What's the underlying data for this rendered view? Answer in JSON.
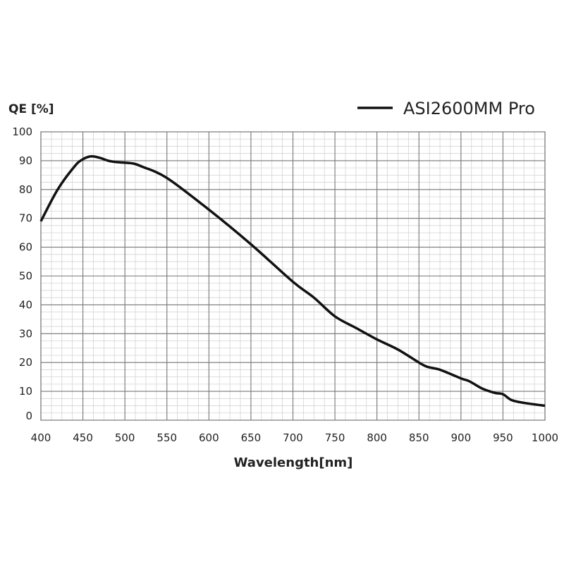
{
  "chart_data": {
    "type": "line",
    "title": "",
    "xlabel": "Wavelength[nm]",
    "ylabel": "QE [%]",
    "xlim": [
      400,
      1000
    ],
    "ylim": [
      0,
      100
    ],
    "xticks": [
      400,
      450,
      500,
      550,
      600,
      650,
      700,
      750,
      800,
      850,
      900,
      950,
      1000
    ],
    "yticks": [
      0,
      10,
      20,
      30,
      40,
      50,
      60,
      70,
      80,
      90,
      100
    ],
    "grid": true,
    "legend": "top-right",
    "series": [
      {
        "name": "ASI2600MM Pro",
        "color": "#111111",
        "x": [
          400,
          420,
          440,
          450,
          460,
          470,
          480,
          490,
          500,
          510,
          520,
          550,
          600,
          650,
          700,
          725,
          750,
          775,
          800,
          825,
          850,
          860,
          875,
          900,
          910,
          925,
          940,
          950,
          960,
          975,
          1000
        ],
        "y": [
          69,
          80,
          88,
          90.5,
          91.5,
          91,
          90,
          89.5,
          89.3,
          89,
          88,
          84,
          73,
          61,
          48,
          42.5,
          36,
          32,
          28,
          24.5,
          20,
          18.5,
          17.5,
          14.5,
          13.5,
          11,
          9.5,
          9,
          7,
          6,
          5
        ]
      }
    ]
  }
}
